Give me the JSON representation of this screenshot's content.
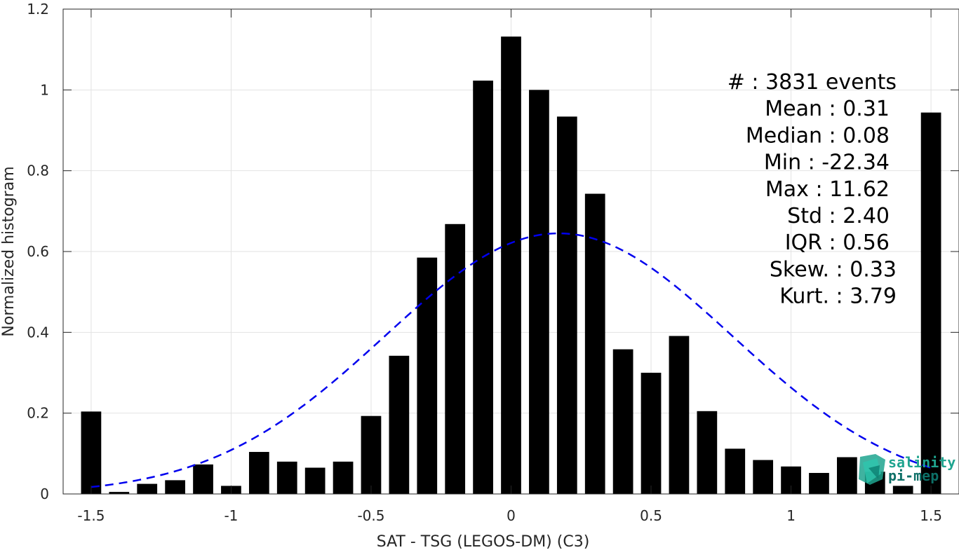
{
  "chart_data": {
    "type": "bar",
    "xlabel": "SAT - TSG (LEGOS-DM) (C3)",
    "ylabel": "Normalized histogram",
    "xlim": [
      -1.6,
      1.6
    ],
    "ylim": [
      0,
      1.2
    ],
    "xticks": [
      "-1.5",
      "-1",
      "-0.5",
      "0",
      "0.5",
      "1",
      "1.5"
    ],
    "xtick_values": [
      -1.5,
      -1,
      -0.5,
      0,
      0.5,
      1,
      1.5
    ],
    "yticks": [
      "0",
      "0.2",
      "0.4",
      "0.6",
      "0.8",
      "1",
      "1.2"
    ],
    "ytick_values": [
      0,
      0.2,
      0.4,
      0.6,
      0.8,
      1,
      1.2
    ],
    "grid": true,
    "bar_color": "#000000",
    "curve_color": "#0000ee",
    "bins": [
      -1.5,
      -1.4,
      -1.3,
      -1.2,
      -1.1,
      -1.0,
      -0.9,
      -0.8,
      -0.7,
      -0.6,
      -0.5,
      -0.4,
      -0.3,
      -0.2,
      -0.1,
      0.0,
      0.1,
      0.2,
      0.3,
      0.4,
      0.5,
      0.6,
      0.7,
      0.8,
      0.9,
      1.0,
      1.1,
      1.2,
      1.3,
      1.4,
      1.5
    ],
    "values": [
      0.204,
      0.005,
      0.025,
      0.034,
      0.073,
      0.02,
      0.104,
      0.08,
      0.065,
      0.08,
      0.193,
      0.342,
      0.585,
      0.668,
      1.023,
      1.132,
      1.0,
      0.934,
      0.743,
      0.358,
      0.3,
      0.391,
      0.205,
      0.112,
      0.084,
      0.068,
      0.052,
      0.091,
      0.055,
      0.02,
      0.944
    ],
    "fit": {
      "type": "normal",
      "mean": 0.17,
      "std": 0.62,
      "peak": 0.645
    },
    "stats": [
      "#  : 3831 events",
      "Mean : 0.31",
      "Median : 0.08",
      "Min : -22.34",
      "Max : 11.62",
      "Std : 2.40",
      "IQR : 0.56",
      "Skew. : 0.33",
      "Kurt. : 3.79"
    ]
  },
  "logo": {
    "line1": "salinity",
    "line2": "pi-mep",
    "color": "#1fa48f"
  }
}
